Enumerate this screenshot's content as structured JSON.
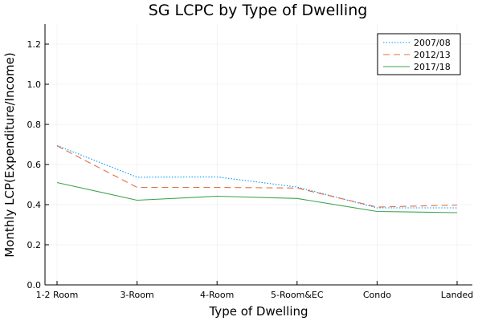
{
  "chart_data": {
    "type": "line",
    "title": "SG LCPC by Type of Dwelling",
    "xlabel": "Type of Dwelling",
    "ylabel": "Monthly LCP(Expenditure/Income)",
    "categories": [
      "1-2 Room",
      "3-Room",
      "4-Room",
      "5-Room&EC",
      "Condo",
      "Landed"
    ],
    "ylim": [
      0,
      1.3
    ],
    "yticks": [
      0.0,
      0.2,
      0.4,
      0.6,
      0.8,
      1.0,
      1.2
    ],
    "ytick_labels": [
      "0.0",
      "0.2",
      "0.4",
      "0.6",
      "0.8",
      "1.0",
      "1.2"
    ],
    "grid": true,
    "legend_position": "top-right",
    "series": [
      {
        "name": "2007/08",
        "style": "dotted",
        "color": "#009AFA",
        "values": [
          0.695,
          0.537,
          0.538,
          0.488,
          0.384,
          0.384
        ]
      },
      {
        "name": "2012/13",
        "style": "dashed",
        "color": "#E26F46",
        "values": [
          0.693,
          0.486,
          0.486,
          0.483,
          0.388,
          0.398
        ]
      },
      {
        "name": "2017/18",
        "style": "solid",
        "color": "#3DA44D",
        "values": [
          0.51,
          0.422,
          0.442,
          0.431,
          0.366,
          0.36
        ]
      }
    ]
  }
}
